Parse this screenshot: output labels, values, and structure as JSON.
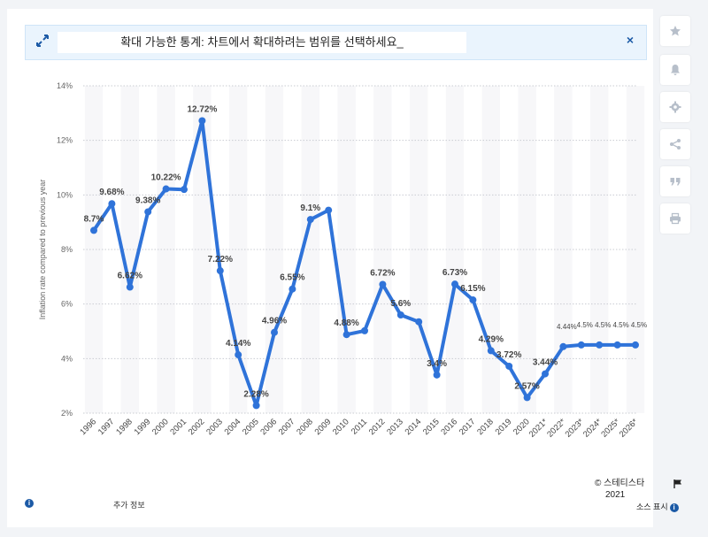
{
  "banner": {
    "text": "확대 가능한 통계: 차트에서 확대하려는 범위를 선택하세요_",
    "close_symbol": "×"
  },
  "sidebar": {
    "buttons": [
      "star-icon",
      "bell-icon",
      "gear-icon",
      "share-icon",
      "quote-icon",
      "print-icon"
    ]
  },
  "footer": {
    "more_info": "추가 정보",
    "credit_line1": "© 스테티스타",
    "credit_line2": "2021",
    "source": "소스 표시"
  },
  "chart_data": {
    "type": "line",
    "ylabel": "Inflation rate compared to previous year",
    "xlabel": "",
    "ylim": [
      2,
      14
    ],
    "yticks": [
      "2%",
      "4%",
      "6%",
      "8%",
      "10%",
      "12%",
      "14%"
    ],
    "grid": true,
    "color": "#2f73d9",
    "categories": [
      "1996",
      "1997",
      "1998",
      "1999",
      "2000",
      "2001",
      "2002",
      "2003",
      "2004",
      "2005",
      "2006",
      "2007",
      "2008",
      "2009",
      "2010",
      "2011",
      "2012",
      "2013",
      "2014",
      "2015",
      "2016",
      "2017",
      "2018",
      "2019",
      "2020",
      "2021*",
      "2022*",
      "2023*",
      "2024*",
      "2025*",
      "2026*"
    ],
    "values": [
      8.7,
      9.68,
      6.62,
      9.38,
      10.22,
      10.2,
      12.72,
      7.22,
      4.14,
      2.28,
      4.96,
      6.55,
      9.1,
      9.44,
      4.88,
      5.02,
      6.72,
      5.6,
      5.35,
      3.4,
      6.73,
      6.15,
      4.29,
      3.72,
      2.57,
      3.44,
      4.44,
      4.5,
      4.5,
      4.5,
      4.5
    ],
    "labels": [
      "8.7%",
      "9.68%",
      "6.62%",
      "9.38%",
      "10.22%",
      "",
      "12.72%",
      "7.22%",
      "4.14%",
      "2.28%",
      "4.96%",
      "6.55%",
      "9.1%",
      "",
      "4.88%",
      "",
      "6.72%",
      "5.6%",
      "",
      "3.4%",
      "6.73%",
      "6.15%",
      "4.29%",
      "3.72%",
      "2.57%",
      "3.44%",
      "4.44%",
      "4.5%",
      "4.5%",
      "4.5%",
      "4.5%"
    ]
  }
}
